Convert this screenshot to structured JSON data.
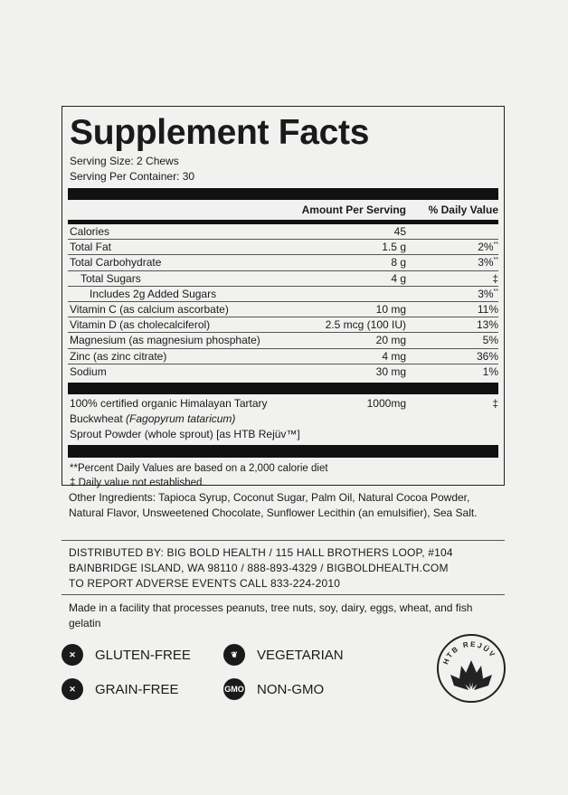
{
  "title": "Supplement Facts",
  "serving_size": "Serving Size: 2 Chews",
  "servings_per_container": "Serving Per Container: 30",
  "headers": {
    "amount": "Amount Per Serving",
    "dv": "% Daily Value"
  },
  "rows": [
    {
      "name": "Calories",
      "amount": "45",
      "dv": "",
      "mark": ""
    },
    {
      "name": "Total Fat",
      "amount": "1.5 g",
      "dv": "2%",
      "mark": "**"
    },
    {
      "name": "Total Carbohydrate",
      "amount": "8 g",
      "dv": "3%",
      "mark": "**"
    },
    {
      "name": "Total Sugars",
      "amount": "4 g",
      "dv": "‡",
      "mark": ""
    },
    {
      "name": "Includes 2g Added Sugars",
      "amount": "",
      "dv": "3%",
      "mark": "**"
    },
    {
      "name": "Vitamin C (as calcium ascorbate)",
      "amount": "10 mg",
      "dv": "11%",
      "mark": ""
    },
    {
      "name": "Vitamin D (as cholecalciferol)",
      "amount": "2.5 mcg (100 IU)",
      "dv": "13%",
      "mark": ""
    },
    {
      "name": "Magnesium (as magnesium phosphate)",
      "amount": "20 mg",
      "dv": "5%",
      "mark": ""
    },
    {
      "name": "Zinc (as zinc citrate)",
      "amount": "4 mg",
      "dv": "36%",
      "mark": ""
    },
    {
      "name": "Sodium",
      "amount": "30 mg",
      "dv": "1%",
      "mark": ""
    }
  ],
  "buckwheat": {
    "line1": "100% certified organic Himalayan Tartary",
    "line2a": "Buckwheat ",
    "line2b": "(Fagopyrum tataricum)",
    "line3": "Sprout Powder (whole sprout) [as HTB Rejüv™]",
    "amount": "1000mg",
    "dv": "‡"
  },
  "footnotes": [
    "**Percent Daily Values are based on a 2,000 calorie diet",
    "‡ Daily value not established."
  ],
  "other_ingredients": "Other Ingredients: Tapioca Syrup, Coconut Sugar, Palm Oil, Natural Cocoa Powder, Natural Flavor, Unsweetened Chocolate, Sunflower Lecithin (an emulsifier), Sea Salt.",
  "distributor": [
    "Distributed by: Big Bold Health  /  115 Hall Brothers Loop, #104",
    "Bainbridge Island, WA 98110  /  888-893-4329  /  bigboldhealth.com",
    "To report adverse events call 833-224-2010"
  ],
  "allergen": "Made in a facility that processes peanuts, tree nuts, soy, dairy, eggs, wheat, and fish gelatin",
  "badges": {
    "gluten": "GLUTEN-FREE",
    "grain": "GRAIN-FREE",
    "veg": "VEGETARIAN",
    "gmo": "NON-GMO",
    "gmo_icon": "GMO"
  },
  "logo": {
    "text": "HTB REJÜV"
  }
}
